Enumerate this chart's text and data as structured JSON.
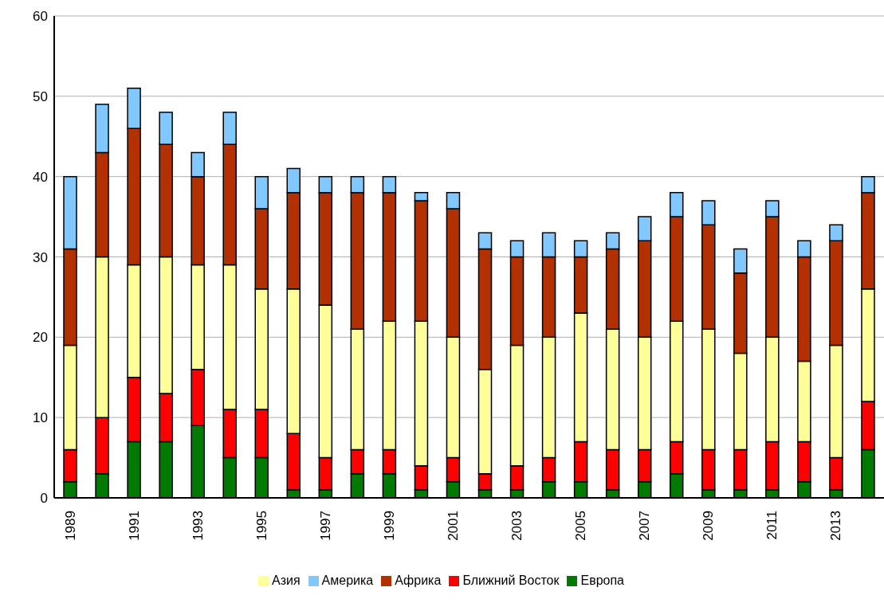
{
  "chart_data": {
    "type": "bar",
    "stacked": true,
    "categories": [
      "1989",
      null,
      "1991",
      null,
      "1993",
      null,
      "1995",
      null,
      "1997",
      null,
      "1999",
      null,
      "2001",
      null,
      "2003",
      null,
      "2005",
      null,
      "2007",
      null,
      "2009",
      null,
      "2011",
      null,
      "2013",
      null
    ],
    "series": [
      {
        "name": "Европа",
        "color": "#007a00",
        "values": [
          2,
          3,
          7,
          7,
          9,
          5,
          5,
          1,
          1,
          3,
          3,
          1,
          2,
          1,
          1,
          2,
          2,
          1,
          2,
          3,
          1,
          1,
          1,
          2,
          1,
          6
        ]
      },
      {
        "name": "Ближний Восток",
        "color": "#ff0000",
        "values": [
          4,
          7,
          8,
          6,
          7,
          6,
          6,
          7,
          4,
          3,
          3,
          3,
          3,
          2,
          3,
          3,
          5,
          5,
          4,
          4,
          5,
          5,
          6,
          5,
          4,
          6
        ]
      },
      {
        "name": "Азия",
        "color": "#ffff99",
        "values": [
          13,
          20,
          14,
          17,
          13,
          18,
          15,
          18,
          19,
          15,
          16,
          18,
          15,
          13,
          15,
          15,
          16,
          15,
          14,
          15,
          15,
          12,
          13,
          10,
          14,
          14
        ]
      },
      {
        "name": "Африка",
        "color": "#b33000",
        "values": [
          12,
          13,
          17,
          14,
          11,
          15,
          10,
          12,
          14,
          17,
          16,
          15,
          16,
          15,
          11,
          10,
          7,
          10,
          12,
          13,
          13,
          10,
          15,
          13,
          13,
          12
        ]
      },
      {
        "name": "Америка",
        "color": "#80c8ff",
        "values": [
          9,
          6,
          5,
          4,
          3,
          4,
          4,
          3,
          2,
          2,
          2,
          1,
          2,
          2,
          2,
          3,
          2,
          2,
          3,
          3,
          3,
          3,
          2,
          2,
          2,
          2
        ]
      }
    ],
    "ylim": [
      0,
      60
    ],
    "yticks": [
      0,
      10,
      20,
      30,
      40,
      50,
      60
    ],
    "grid": "y",
    "legend": "bottom"
  }
}
